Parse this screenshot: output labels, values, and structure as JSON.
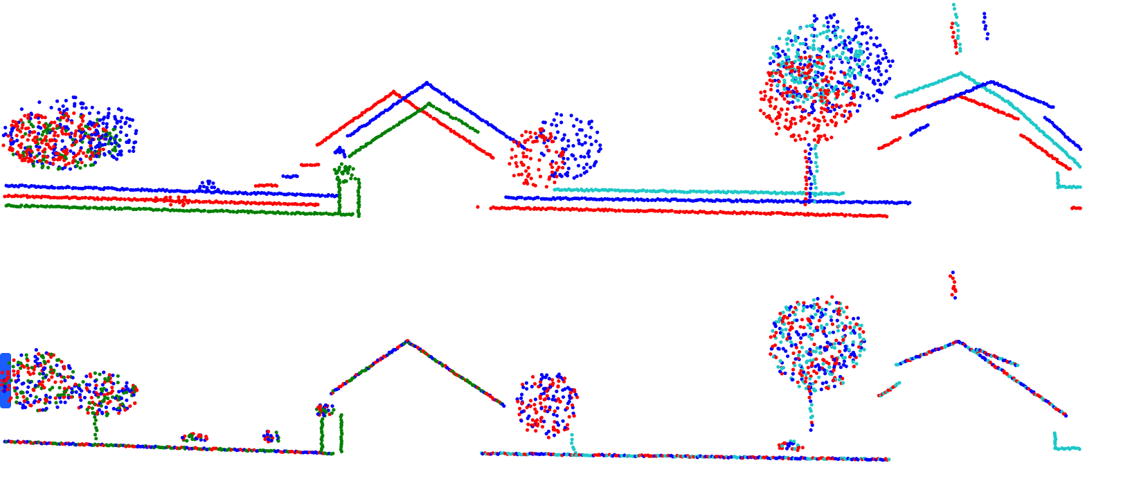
{
  "figure": {
    "description_kind": "point-cloud comparison, two stacked panels",
    "colors": {
      "red": "#ff0000",
      "blue": "#0000ff",
      "green": "#008000",
      "cyan": "#1ec8c8",
      "background": "#ffffff"
    },
    "panels": [
      {
        "id": "top",
        "state": "misaligned"
      },
      {
        "id": "bottom",
        "state": "aligned"
      }
    ]
  }
}
